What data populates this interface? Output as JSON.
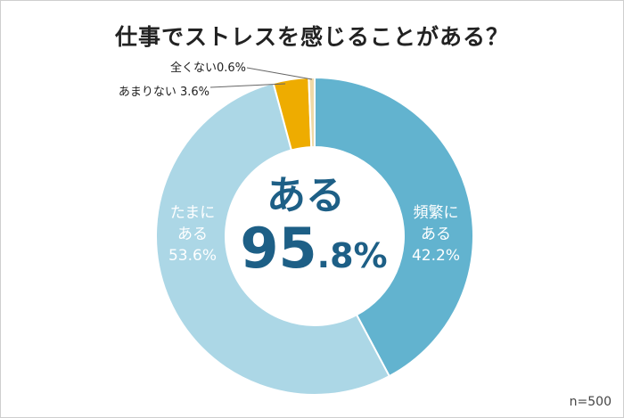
{
  "title": "仕事でストレスを感じることがある？",
  "center": {
    "label": "ある",
    "value_main": "95",
    "value_sub": ".8%"
  },
  "sample_size": "n=500",
  "chart_data": {
    "type": "pie",
    "title": "仕事でストレスを感じることがある？",
    "slices": [
      {
        "label_lines": [
          "頻繁に",
          "ある"
        ],
        "value": 42.2,
        "display": "42.2%",
        "color": "#62b3cf",
        "label_color": "#ffffff"
      },
      {
        "label_lines": [
          "たまに",
          "ある"
        ],
        "value": 53.6,
        "display": "53.6%",
        "color": "#acd7e6",
        "label_color": "#ffffff"
      },
      {
        "label_lines": [
          "あまりない"
        ],
        "value": 3.6,
        "display": "3.6%",
        "color": "#eeac00",
        "label_color": "#222222"
      },
      {
        "label_lines": [
          "全くない"
        ],
        "value": 0.6,
        "display": "0.6%",
        "color": "#f0d9a6",
        "label_color": "#222222"
      }
    ],
    "donut": true,
    "legend": "none"
  }
}
